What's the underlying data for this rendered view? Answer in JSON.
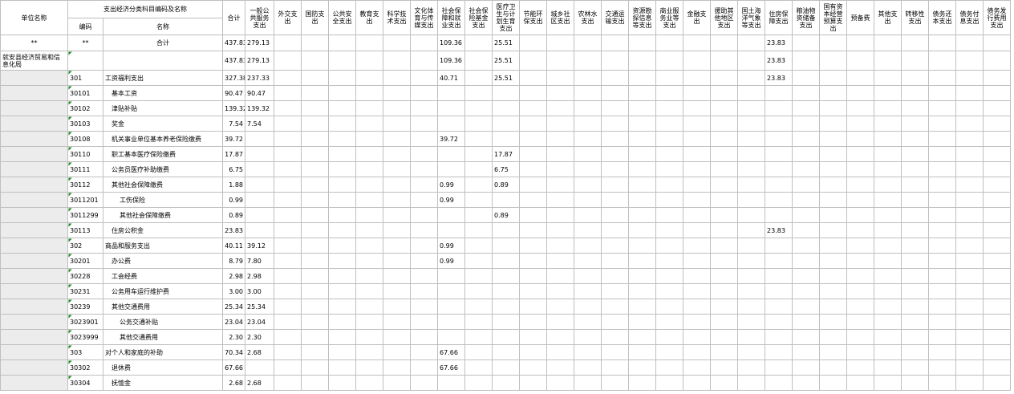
{
  "header": {
    "unit": "单位名称",
    "group": "支出经济分类科目编码及名称",
    "code": "编码",
    "name": "名称",
    "columns": [
      "合计",
      "一般公共服务支出",
      "外交支出",
      "国防支出",
      "公共安全支出",
      "教育支出",
      "科学技术支出",
      "文化体育与传媒支出",
      "社会保障和就业支出",
      "社会保险基金支出",
      "医疗卫生与计划生育支出",
      "节能环保支出",
      "城乡社区支出",
      "农林水支出",
      "交通运输支出",
      "资源勘探信息等支出",
      "商业服务业等支出",
      "金融支出",
      "援助其他地区支出",
      "国土海洋气象等支出",
      "住房保障支出",
      "粮油物资储备支出",
      "国有资本经营预算支出",
      "预备费",
      "其他支出",
      "转移性支出",
      "债务还本支出",
      "债务付息支出",
      "债务发行费用支出"
    ]
  },
  "rows": [
    {
      "unit": "**",
      "code": "**",
      "name": "合计",
      "values": [
        "437.83",
        "279.13",
        null,
        null,
        null,
        null,
        null,
        null,
        "109.36",
        null,
        "25.51",
        null,
        null,
        null,
        null,
        null,
        null,
        null,
        null,
        null,
        "23.83",
        null,
        null,
        null,
        null,
        null,
        null,
        null,
        null
      ]
    },
    {
      "unit": "就安县经济贸易和信息化局",
      "code": null,
      "name": null,
      "values": [
        "437.83",
        "279.13",
        null,
        null,
        null,
        null,
        null,
        null,
        "109.36",
        null,
        "25.51",
        null,
        null,
        null,
        null,
        null,
        null,
        null,
        null,
        null,
        "23.83",
        null,
        null,
        null,
        null,
        null,
        null,
        null,
        null
      ]
    },
    {
      "unit": null,
      "code": "301",
      "name": "工资福利支出",
      "values": [
        "327.38",
        "237.33",
        null,
        null,
        null,
        null,
        null,
        null,
        "40.71",
        null,
        "25.51",
        null,
        null,
        null,
        null,
        null,
        null,
        null,
        null,
        null,
        "23.83",
        null,
        null,
        null,
        null,
        null,
        null,
        null,
        null
      ]
    },
    {
      "unit": null,
      "code": "30101",
      "name": "基本工资",
      "values": [
        "90.47",
        "90.47",
        null,
        null,
        null,
        null,
        null,
        null,
        null,
        null,
        null,
        null,
        null,
        null,
        null,
        null,
        null,
        null,
        null,
        null,
        null,
        null,
        null,
        null,
        null,
        null,
        null,
        null,
        null
      ]
    },
    {
      "unit": null,
      "code": "30102",
      "name": "津贴补贴",
      "values": [
        "139.32",
        "139.32",
        null,
        null,
        null,
        null,
        null,
        null,
        null,
        null,
        null,
        null,
        null,
        null,
        null,
        null,
        null,
        null,
        null,
        null,
        null,
        null,
        null,
        null,
        null,
        null,
        null,
        null,
        null
      ]
    },
    {
      "unit": null,
      "code": "30103",
      "name": "奖金",
      "values": [
        "7.54",
        "7.54",
        null,
        null,
        null,
        null,
        null,
        null,
        null,
        null,
        null,
        null,
        null,
        null,
        null,
        null,
        null,
        null,
        null,
        null,
        null,
        null,
        null,
        null,
        null,
        null,
        null,
        null,
        null
      ]
    },
    {
      "unit": null,
      "code": "30108",
      "name": "机关事业单位基本养老保险缴费",
      "values": [
        "39.72",
        null,
        null,
        null,
        null,
        null,
        null,
        null,
        "39.72",
        null,
        null,
        null,
        null,
        null,
        null,
        null,
        null,
        null,
        null,
        null,
        null,
        null,
        null,
        null,
        null,
        null,
        null,
        null,
        null
      ]
    },
    {
      "unit": null,
      "code": "30110",
      "name": "职工基本医疗保险缴费",
      "values": [
        "17.87",
        null,
        null,
        null,
        null,
        null,
        null,
        null,
        null,
        null,
        "17.87",
        null,
        null,
        null,
        null,
        null,
        null,
        null,
        null,
        null,
        null,
        null,
        null,
        null,
        null,
        null,
        null,
        null,
        null
      ]
    },
    {
      "unit": null,
      "code": "30111",
      "name": "公务员医疗补助缴费",
      "values": [
        "6.75",
        null,
        null,
        null,
        null,
        null,
        null,
        null,
        null,
        null,
        "6.75",
        null,
        null,
        null,
        null,
        null,
        null,
        null,
        null,
        null,
        null,
        null,
        null,
        null,
        null,
        null,
        null,
        null,
        null
      ]
    },
    {
      "unit": null,
      "code": "30112",
      "name": "其他社会保障缴费",
      "values": [
        "1.88",
        null,
        null,
        null,
        null,
        null,
        null,
        null,
        "0.99",
        null,
        "0.89",
        null,
        null,
        null,
        null,
        null,
        null,
        null,
        null,
        null,
        null,
        null,
        null,
        null,
        null,
        null,
        null,
        null,
        null
      ]
    },
    {
      "unit": null,
      "code": "3011201",
      "name": "工伤保险",
      "values": [
        "0.99",
        null,
        null,
        null,
        null,
        null,
        null,
        null,
        "0.99",
        null,
        null,
        null,
        null,
        null,
        null,
        null,
        null,
        null,
        null,
        null,
        null,
        null,
        null,
        null,
        null,
        null,
        null,
        null,
        null
      ]
    },
    {
      "unit": null,
      "code": "3011299",
      "name": "其他社会保障缴费",
      "values": [
        "0.89",
        null,
        null,
        null,
        null,
        null,
        null,
        null,
        null,
        null,
        "0.89",
        null,
        null,
        null,
        null,
        null,
        null,
        null,
        null,
        null,
        null,
        null,
        null,
        null,
        null,
        null,
        null,
        null,
        null
      ]
    },
    {
      "unit": null,
      "code": "30113",
      "name": "住房公积金",
      "values": [
        "23.83",
        null,
        null,
        null,
        null,
        null,
        null,
        null,
        null,
        null,
        null,
        null,
        null,
        null,
        null,
        null,
        null,
        null,
        null,
        null,
        "23.83",
        null,
        null,
        null,
        null,
        null,
        null,
        null,
        null
      ]
    },
    {
      "unit": null,
      "code": "302",
      "name": "商品和服务支出",
      "values": [
        "40.11",
        "39.12",
        null,
        null,
        null,
        null,
        null,
        null,
        "0.99",
        null,
        null,
        null,
        null,
        null,
        null,
        null,
        null,
        null,
        null,
        null,
        null,
        null,
        null,
        null,
        null,
        null,
        null,
        null,
        null
      ]
    },
    {
      "unit": null,
      "code": "30201",
      "name": "办公费",
      "values": [
        "8.79",
        "7.80",
        null,
        null,
        null,
        null,
        null,
        null,
        "0.99",
        null,
        null,
        null,
        null,
        null,
        null,
        null,
        null,
        null,
        null,
        null,
        null,
        null,
        null,
        null,
        null,
        null,
        null,
        null,
        null
      ]
    },
    {
      "unit": null,
      "code": "30228",
      "name": "工会经费",
      "values": [
        "2.98",
        "2.98",
        null,
        null,
        null,
        null,
        null,
        null,
        null,
        null,
        null,
        null,
        null,
        null,
        null,
        null,
        null,
        null,
        null,
        null,
        null,
        null,
        null,
        null,
        null,
        null,
        null,
        null,
        null
      ]
    },
    {
      "unit": null,
      "code": "30231",
      "name": "公务用车运行维护费",
      "values": [
        "3.00",
        "3.00",
        null,
        null,
        null,
        null,
        null,
        null,
        null,
        null,
        null,
        null,
        null,
        null,
        null,
        null,
        null,
        null,
        null,
        null,
        null,
        null,
        null,
        null,
        null,
        null,
        null,
        null,
        null
      ]
    },
    {
      "unit": null,
      "code": "30239",
      "name": "其他交通费用",
      "values": [
        "25.34",
        "25.34",
        null,
        null,
        null,
        null,
        null,
        null,
        null,
        null,
        null,
        null,
        null,
        null,
        null,
        null,
        null,
        null,
        null,
        null,
        null,
        null,
        null,
        null,
        null,
        null,
        null,
        null,
        null
      ]
    },
    {
      "unit": null,
      "code": "3023901",
      "name": "公务交通补贴",
      "values": [
        "23.04",
        "23.04",
        null,
        null,
        null,
        null,
        null,
        null,
        null,
        null,
        null,
        null,
        null,
        null,
        null,
        null,
        null,
        null,
        null,
        null,
        null,
        null,
        null,
        null,
        null,
        null,
        null,
        null,
        null
      ]
    },
    {
      "unit": null,
      "code": "3023999",
      "name": "其他交通费用",
      "values": [
        "2.30",
        "2.30",
        null,
        null,
        null,
        null,
        null,
        null,
        null,
        null,
        null,
        null,
        null,
        null,
        null,
        null,
        null,
        null,
        null,
        null,
        null,
        null,
        null,
        null,
        null,
        null,
        null,
        null,
        null
      ]
    },
    {
      "unit": null,
      "code": "303",
      "name": "对个人和家庭的补助",
      "values": [
        "70.34",
        "2.68",
        null,
        null,
        null,
        null,
        null,
        null,
        "67.66",
        null,
        null,
        null,
        null,
        null,
        null,
        null,
        null,
        null,
        null,
        null,
        null,
        null,
        null,
        null,
        null,
        null,
        null,
        null,
        null
      ]
    },
    {
      "unit": null,
      "code": "30302",
      "name": "退休费",
      "values": [
        "67.66",
        null,
        null,
        null,
        null,
        null,
        null,
        null,
        "67.66",
        null,
        null,
        null,
        null,
        null,
        null,
        null,
        null,
        null,
        null,
        null,
        null,
        null,
        null,
        null,
        null,
        null,
        null,
        null,
        null
      ]
    },
    {
      "unit": null,
      "code": "30304",
      "name": "抚恤金",
      "values": [
        "2.68",
        "2.68",
        null,
        null,
        null,
        null,
        null,
        null,
        null,
        null,
        null,
        null,
        null,
        null,
        null,
        null,
        null,
        null,
        null,
        null,
        null,
        null,
        null,
        null,
        null,
        null,
        null,
        null,
        null
      ]
    }
  ]
}
